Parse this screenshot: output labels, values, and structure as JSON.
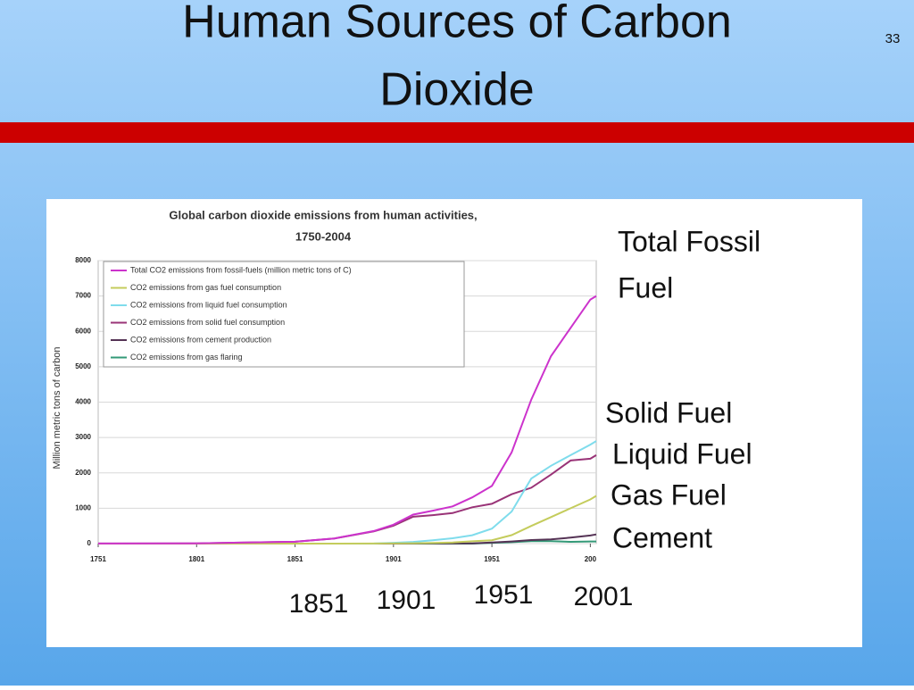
{
  "slide": {
    "title": [
      "Human Sources of Carbon",
      "Dioxide"
    ],
    "number": "33",
    "annotations": {
      "total": [
        "Total Fossil",
        "Fuel"
      ],
      "series": [
        "Solid Fuel",
        "Liquid Fuel",
        "Gas Fuel",
        "Cement"
      ],
      "years": [
        "1851",
        "1901",
        "1951",
        "2001"
      ]
    }
  },
  "chart_data": {
    "type": "line",
    "title": [
      "Global carbon dioxide emissions from human activities,",
      "1750-2004"
    ],
    "y_label": "Million metric tons of carbon",
    "x": [
      1751,
      1801,
      1851,
      1871,
      1891,
      1901,
      1911,
      1921,
      1931,
      1941,
      1951,
      1961,
      1971,
      1981,
      1991,
      2001,
      2004
    ],
    "xlim": [
      1751,
      2004
    ],
    "xticks": [
      1751,
      1801,
      1851,
      1901,
      1951,
      {
        "value": 2001,
        "label": "200"
      }
    ],
    "ylim": [
      0,
      8000
    ],
    "yticks": [
      0,
      1000,
      2000,
      3000,
      4000,
      5000,
      6000,
      7000,
      8000
    ],
    "grid": true,
    "series": [
      {
        "name": "Total CO2 emissions from fossil-fuels (million metric tons of C)",
        "color": "#cc33cc",
        "values": [
          3,
          8,
          54,
          147,
          356,
          534,
          819,
          932,
          1053,
          1308,
          1630,
          2580,
          4070,
          5300,
          6100,
          6900,
          7000
        ]
      },
      {
        "name": "CO2 emissions from gas fuel consumption",
        "color": "#c4cc5c",
        "values": [
          0,
          0,
          0,
          0,
          2,
          4,
          10,
          21,
          34,
          66,
          97,
          240,
          500,
          750,
          1000,
          1250,
          1350
        ]
      },
      {
        "name": "CO2 emissions from liquid fuel consumption",
        "color": "#7fdcec",
        "values": [
          0,
          0,
          0,
          0,
          3,
          23,
          47,
          97,
          152,
          236,
          423,
          905,
          1840,
          2200,
          2500,
          2800,
          2900
        ]
      },
      {
        "name": "CO2 emissions from solid fuel consumption",
        "color": "#993377",
        "values": [
          3,
          8,
          54,
          147,
          345,
          507,
          759,
          806,
          864,
          1028,
          1126,
          1395,
          1580,
          1950,
          2350,
          2400,
          2500
        ]
      },
      {
        "name": "CO2 emissions from cement production",
        "color": "#553355",
        "values": [
          0,
          0,
          0,
          0,
          0,
          1,
          3,
          4,
          8,
          8,
          30,
          60,
          100,
          120,
          170,
          230,
          260
        ]
      },
      {
        "name": "CO2 emissions from gas flaring",
        "color": "#339977",
        "values": [
          0,
          0,
          0,
          0,
          0,
          0,
          0,
          0,
          0,
          0,
          23,
          40,
          70,
          70,
          50,
          60,
          60
        ]
      }
    ]
  }
}
